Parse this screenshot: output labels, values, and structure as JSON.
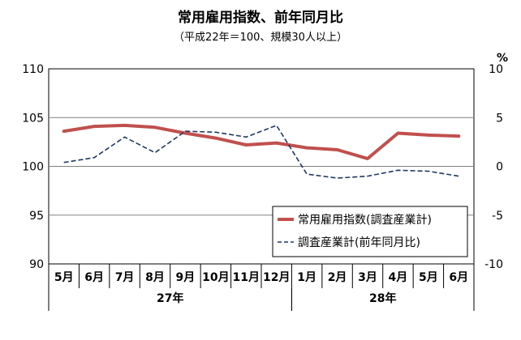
{
  "chart_data": {
    "type": "line",
    "title": "常用雇用指数、前年同月比",
    "subtitle": "（平成22年＝100、規模30人以上）",
    "categories": [
      "5月",
      "6月",
      "7月",
      "8月",
      "9月",
      "10月",
      "11月",
      "12月",
      "1月",
      "2月",
      "3月",
      "4月",
      "5月",
      "6月"
    ],
    "year_groups": [
      {
        "label": "27年",
        "start": 0,
        "end": 7
      },
      {
        "label": "28年",
        "start": 8,
        "end": 13
      }
    ],
    "y_left": {
      "min": 90,
      "max": 110,
      "ticks": [
        "90",
        "95",
        "100",
        "105",
        "110"
      ],
      "tick_values": [
        90,
        95,
        100,
        105,
        110
      ]
    },
    "y_right": {
      "min": -10,
      "max": 10,
      "ticks": [
        "-10",
        "-5",
        "0",
        "5",
        "10"
      ],
      "tick_values": [
        -10,
        -5,
        0,
        5,
        10
      ],
      "unit": "%"
    },
    "grid": true,
    "legend_position": "bottom-right",
    "series": [
      {
        "name": "常用雇用指数(調査産業計)",
        "axis": "left",
        "color": "#c0504d",
        "style": "solid",
        "values": [
          103.6,
          104.1,
          104.2,
          104.0,
          103.4,
          102.9,
          102.2,
          102.4,
          101.9,
          101.7,
          100.8,
          103.4,
          103.2,
          103.1
        ]
      },
      {
        "name": "調査産業計(前年同月比)",
        "axis": "right",
        "color": "#1f3864",
        "style": "dashed",
        "values": [
          0.4,
          0.9,
          3.0,
          1.4,
          3.6,
          3.5,
          3.0,
          4.2,
          -0.8,
          -1.2,
          -1.0,
          -0.4,
          -0.5,
          -1.0
        ]
      }
    ]
  }
}
